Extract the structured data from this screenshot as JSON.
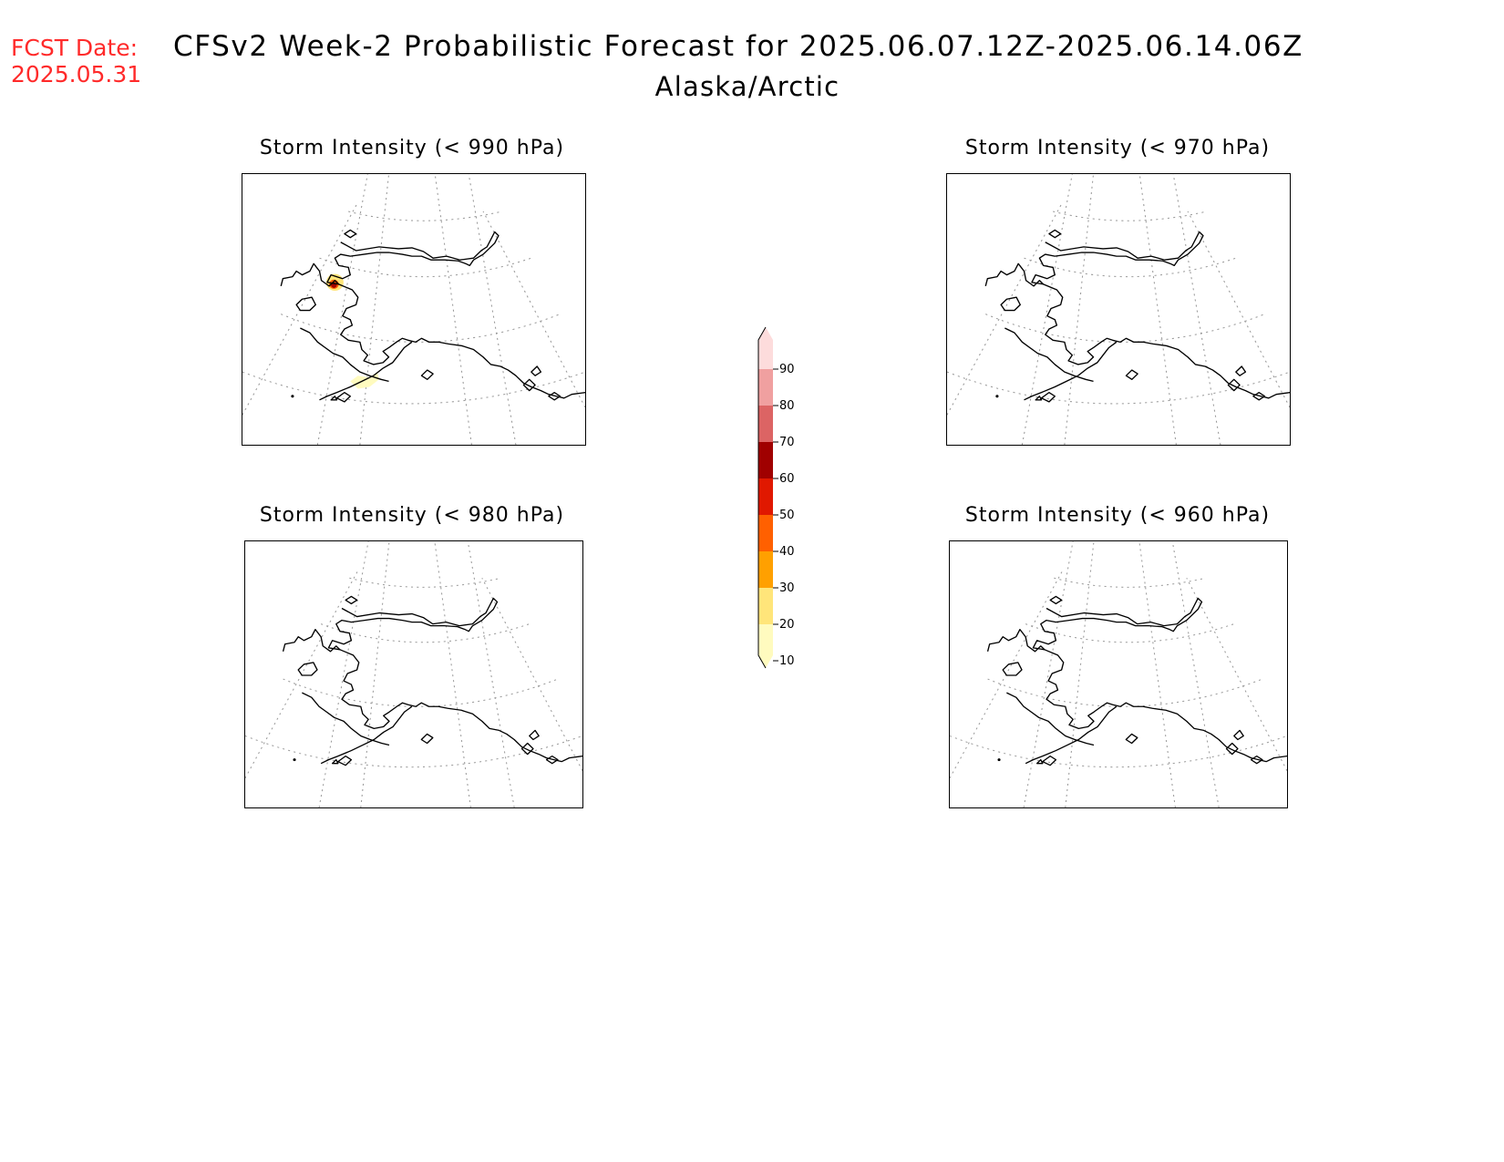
{
  "fcst": {
    "line1": "FCST Date:",
    "line2": "2025.05.31"
  },
  "title": "CFSv2 Week-2 Probabilistic Forecast for 2025.06.07.12Z-2025.06.14.06Z",
  "subtitle": "Alaska/Arctic",
  "panels": [
    {
      "id": "p990",
      "title": "Storm Intensity (< 990 hPa)",
      "highlights": [
        {
          "place": "Seward Peninsula",
          "probability": 60
        },
        {
          "place": "Alaska Peninsula",
          "probability": 10
        }
      ]
    },
    {
      "id": "p970",
      "title": "Storm Intensity (< 970 hPa)",
      "highlights": []
    },
    {
      "id": "p980",
      "title": "Storm Intensity (< 980 hPa)",
      "highlights": []
    },
    {
      "id": "p960",
      "title": "Storm Intensity (< 960 hPa)",
      "highlights": []
    }
  ],
  "colorbar": {
    "levels": [
      10,
      20,
      30,
      40,
      50,
      60,
      70,
      80,
      90
    ],
    "colors": [
      "#fffbbf",
      "#ffe57a",
      "#ffa000",
      "#ff6000",
      "#e01800",
      "#a00000",
      "#dc6464",
      "#f0a0a0",
      "#fddcdc"
    ],
    "colors_comment": "bin colors from lowest (10-20) to highest (>90)"
  },
  "colors": {
    "fcst": "#ff2a2a",
    "coast": "#000000",
    "grid": "#9a9a9a"
  }
}
